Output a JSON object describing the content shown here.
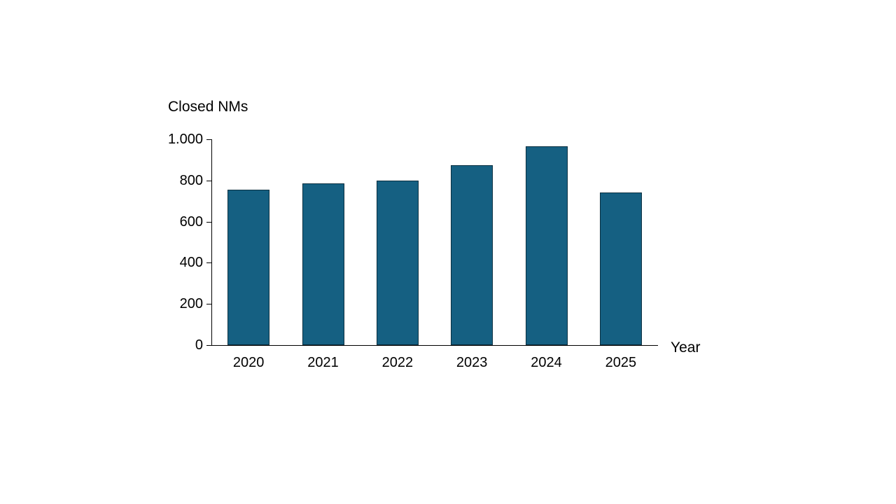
{
  "page": {
    "background_color": "#ffffff"
  },
  "chart_data": {
    "type": "bar",
    "title": "Closed NMs",
    "xlabel": "Year",
    "ylabel": "Closed NMs",
    "categories": [
      "2020",
      "2021",
      "2022",
      "2023",
      "2024",
      "2025"
    ],
    "values": [
      755,
      785,
      800,
      875,
      965,
      740
    ],
    "ylim": [
      0,
      1000
    ],
    "ytick_interval": 200,
    "ytick_values": [
      0,
      200,
      400,
      600,
      800,
      1000
    ],
    "ytick_labels": [
      "0",
      "200",
      "400",
      "600",
      "800",
      "1.000"
    ],
    "grid": false,
    "legend": "none",
    "bar_fill_color": "#156082",
    "bar_border_color": "#0b3041",
    "axis_color": "#000000",
    "text_color": "#000000"
  }
}
